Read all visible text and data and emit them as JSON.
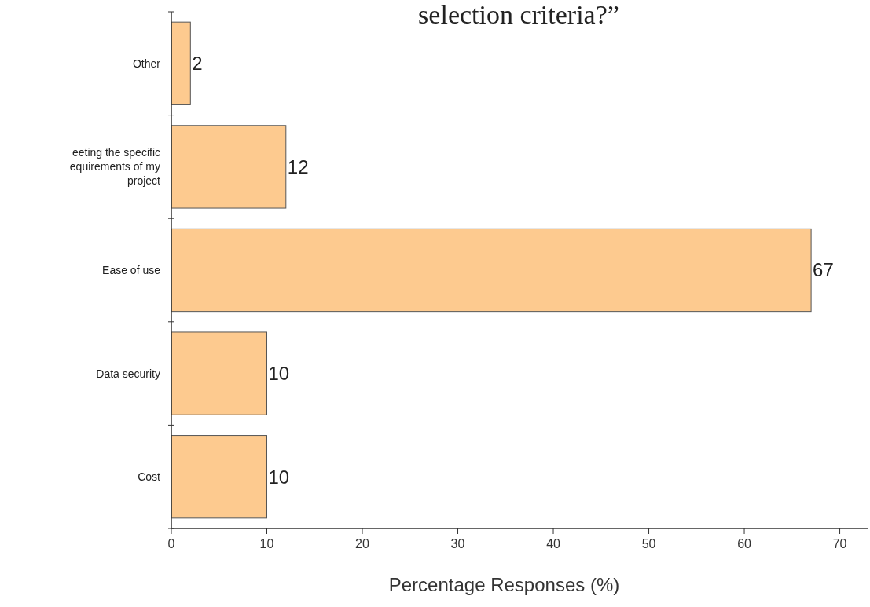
{
  "chart_data": {
    "type": "bar",
    "orientation": "horizontal",
    "title": "selection criteria?”",
    "xlabel": "Percentage Responses (%)",
    "categories": [
      "Other",
      "eeting the specific equirements of my project",
      "Ease of use",
      "Data security",
      "Cost"
    ],
    "values": [
      2,
      12,
      67,
      10,
      10
    ],
    "color": "#fdca8f",
    "data_labels": true,
    "xlim": [
      0,
      73
    ],
    "xticks": [
      0,
      10,
      20,
      30,
      40,
      50,
      60,
      70
    ]
  }
}
